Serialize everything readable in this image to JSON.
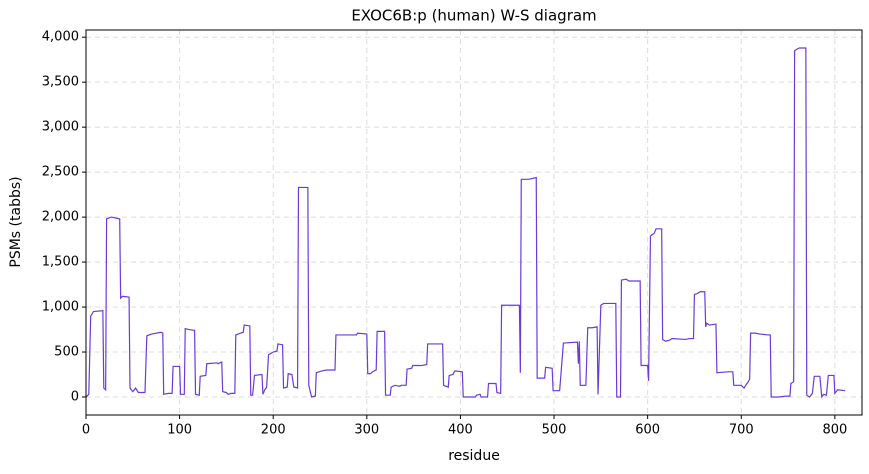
{
  "chart_data": {
    "type": "line",
    "title": "EXOC6B:p (human) W-S diagram",
    "xlabel": "residue",
    "ylabel": "PSMs (tabbs)",
    "x": [
      0,
      3,
      5,
      8,
      18,
      19,
      21,
      22,
      27,
      36,
      37,
      39,
      46,
      47,
      50,
      53,
      56,
      63,
      65,
      70,
      80,
      82,
      83,
      88,
      92,
      93,
      100,
      101,
      105,
      106,
      110,
      116,
      117,
      121,
      122,
      128,
      129,
      140,
      141,
      145,
      146,
      150,
      152,
      155,
      159,
      160,
      165,
      168,
      169,
      175,
      176,
      178,
      180,
      188,
      189,
      191,
      193,
      195,
      200,
      204,
      205,
      210,
      211,
      215,
      216,
      220,
      222,
      226,
      227,
      237,
      238,
      241,
      245,
      246,
      252,
      257,
      266,
      267,
      289,
      290,
      300,
      301,
      304,
      306,
      310,
      311,
      319,
      320,
      325,
      326,
      330,
      335,
      337,
      342,
      343,
      348,
      349,
      358,
      364,
      365,
      381,
      382,
      387,
      388,
      392,
      394,
      402,
      403,
      416,
      417,
      421,
      422,
      429,
      430,
      438,
      439,
      443,
      444,
      463,
      464,
      465,
      473,
      481,
      482,
      490,
      491,
      498,
      499,
      506,
      510,
      525,
      526,
      527,
      528,
      534,
      536,
      541,
      546,
      547,
      550,
      553,
      566,
      567,
      571,
      572,
      577,
      580,
      592,
      593,
      600,
      601,
      603,
      607,
      609,
      615,
      616,
      619,
      623,
      626,
      640,
      645,
      649,
      650,
      653,
      656,
      661,
      662,
      663,
      666,
      673,
      674,
      686,
      691,
      692,
      700,
      703,
      706,
      707,
      709,
      710,
      715,
      720,
      729,
      731,
      732,
      740,
      748,
      752,
      753,
      756,
      757,
      760,
      762,
      769,
      770,
      773,
      776,
      778,
      784,
      786,
      788,
      791,
      793,
      799,
      800,
      803,
      811
    ],
    "series": [
      {
        "color": "#6a3bd8",
        "values": [
          0,
          30,
          900,
          950,
          960,
          100,
          80,
          1980,
          2000,
          1980,
          1100,
          1120,
          1110,
          100,
          60,
          100,
          50,
          50,
          680,
          700,
          720,
          710,
          30,
          40,
          40,
          340,
          340,
          30,
          30,
          760,
          750,
          740,
          30,
          20,
          230,
          240,
          370,
          380,
          370,
          390,
          60,
          50,
          30,
          40,
          40,
          690,
          710,
          720,
          800,
          790,
          20,
          20,
          240,
          250,
          30,
          80,
          110,
          470,
          500,
          510,
          590,
          580,
          100,
          110,
          260,
          250,
          110,
          100,
          2330,
          2330,
          130,
          0,
          10,
          270,
          290,
          300,
          300,
          690,
          690,
          710,
          700,
          260,
          260,
          280,
          300,
          730,
          730,
          20,
          20,
          110,
          130,
          120,
          130,
          130,
          310,
          320,
          350,
          350,
          360,
          590,
          590,
          130,
          110,
          240,
          250,
          290,
          280,
          0,
          0,
          20,
          30,
          0,
          0,
          150,
          150,
          50,
          40,
          1020,
          1020,
          270,
          2420,
          2420,
          2440,
          210,
          210,
          330,
          320,
          70,
          70,
          600,
          610,
          370,
          620,
          130,
          130,
          770,
          770,
          780,
          30,
          1020,
          1040,
          1040,
          0,
          0,
          1300,
          1310,
          1290,
          1290,
          350,
          350,
          180,
          1790,
          1820,
          1870,
          1870,
          640,
          620,
          630,
          650,
          640,
          650,
          650,
          1140,
          1150,
          1170,
          1170,
          780,
          820,
          800,
          810,
          270,
          280,
          280,
          130,
          130,
          100,
          150,
          160,
          200,
          710,
          710,
          700,
          690,
          690,
          0,
          0,
          10,
          10,
          150,
          170,
          3850,
          3870,
          3880,
          3880,
          20,
          0,
          40,
          230,
          230,
          0,
          30,
          20,
          240,
          240,
          40,
          80,
          70
        ]
      }
    ],
    "xlim": [
      0,
      829
    ],
    "ylim": [
      -200,
      4080
    ],
    "xticks": [
      0,
      100,
      200,
      300,
      400,
      500,
      600,
      700,
      800
    ],
    "yticks": [
      0,
      500,
      {
        "value": 1000,
        "label": "1,000"
      },
      {
        "value": 1500,
        "label": "1,500"
      },
      {
        "value": 2000,
        "label": "2,000"
      },
      {
        "value": 2500,
        "label": "2,500"
      },
      {
        "value": 3000,
        "label": "3,000"
      },
      {
        "value": 3500,
        "label": "3,500"
      },
      {
        "value": 4000,
        "label": "4,000"
      }
    ],
    "grid": true
  }
}
